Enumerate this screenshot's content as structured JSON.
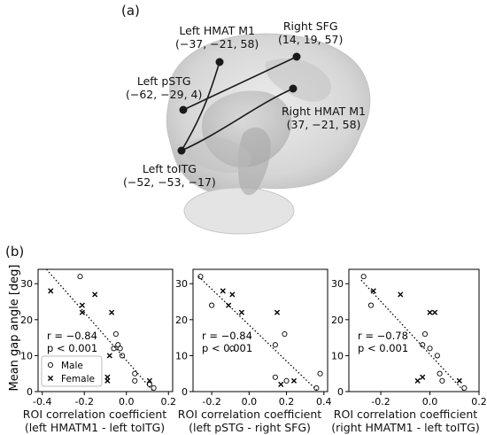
{
  "panel_a_label": "(a)",
  "panel_b_label": "(b)",
  "brain": {
    "regions": [
      {
        "id": "left-hmat-m1",
        "name": "Left HMAT M1",
        "coords": "(−37, −21, 58)"
      },
      {
        "id": "right-sfg",
        "name": "Right SFG",
        "coords": "(14, 19, 57)"
      },
      {
        "id": "left-pstg",
        "name": "Left pSTG",
        "coords": "(−62, −29, 4)"
      },
      {
        "id": "right-hmat-m1",
        "name": "Right HMAT M1",
        "coords": "(37, −21, 58)"
      },
      {
        "id": "left-toitg",
        "name": "Left toITG",
        "coords": "(−52, −53, −17)"
      }
    ],
    "colors": {
      "brain": "#d9d9d9",
      "nodes": "#1a1a1a"
    }
  },
  "shared_ylabel": "Mean gap angle [deg]",
  "legend": {
    "male": "Male",
    "female": "Female"
  },
  "chart_data": [
    {
      "type": "scatter",
      "xlabel_line1": "ROI correlation coefficient",
      "xlabel_line2": "(left HMATM1 - left toITG)",
      "xlim": [
        -0.42,
        0.22
      ],
      "ylim": [
        0,
        34
      ],
      "xticks": [
        "-0.4",
        "-0.2",
        "0.0",
        "0.2"
      ],
      "xtick_values": [
        -0.4,
        -0.2,
        0.0,
        0.2
      ],
      "yticks": [
        "0",
        "10",
        "20",
        "30"
      ],
      "ytick_values": [
        0,
        10,
        20,
        30
      ],
      "stat_r": "r = −0.84",
      "stat_p": "p < 0.001",
      "fit": [
        [
          -0.38,
          34
        ],
        [
          0.13,
          0
        ]
      ],
      "series": [
        {
          "name": "Male",
          "marker": "circle",
          "points": [
            [
              -0.22,
              32
            ],
            [
              -0.05,
              16
            ],
            [
              -0.04,
              13
            ],
            [
              -0.03,
              12
            ],
            [
              -0.06,
              12
            ],
            [
              0.04,
              5
            ],
            [
              0.04,
              3
            ],
            [
              0.11,
              2
            ],
            [
              0.13,
              1
            ],
            [
              -0.02,
              10
            ]
          ]
        },
        {
          "name": "Female",
          "marker": "x",
          "points": [
            [
              -0.36,
              28
            ],
            [
              -0.21,
              24
            ],
            [
              -0.21,
              22
            ],
            [
              -0.15,
              27
            ],
            [
              -0.07,
              22
            ],
            [
              -0.09,
              4
            ],
            [
              -0.09,
              3
            ],
            [
              0.11,
              3
            ],
            [
              -0.08,
              10
            ]
          ]
        }
      ],
      "legend_position": "lower-left",
      "grid": false
    },
    {
      "type": "scatter",
      "xlabel_line1": "ROI correlation coefficient",
      "xlabel_line2": "(left pSTG - right SFG)",
      "xlim": [
        -0.3,
        0.42
      ],
      "ylim": [
        0,
        34
      ],
      "xticks": [
        "-0.2",
        "0.0",
        "0.2",
        "0.4"
      ],
      "xtick_values": [
        -0.2,
        0.0,
        0.2,
        0.4
      ],
      "yticks": [
        "0",
        "10",
        "20",
        "30"
      ],
      "ytick_values": [
        0,
        10,
        20,
        30
      ],
      "stat_r": "r = −0.84",
      "stat_p": "p < 0.001",
      "fit": [
        [
          -0.27,
          32
        ],
        [
          0.37,
          0
        ]
      ],
      "series": [
        {
          "name": "Male",
          "marker": "circle",
          "points": [
            [
              -0.26,
              32
            ],
            [
              -0.2,
              24
            ],
            [
              -0.09,
              12
            ],
            [
              0.14,
              13
            ],
            [
              0.19,
              16
            ],
            [
              0.14,
              4
            ],
            [
              0.2,
              3
            ],
            [
              0.36,
              1
            ],
            [
              0.38,
              5
            ]
          ]
        },
        {
          "name": "Female",
          "marker": "x",
          "points": [
            [
              -0.14,
              28
            ],
            [
              -0.09,
              27
            ],
            [
              -0.11,
              24
            ],
            [
              -0.04,
              22
            ],
            [
              0.15,
              22
            ],
            [
              0.17,
              2
            ],
            [
              0.24,
              3
            ]
          ]
        }
      ],
      "legend_position": "none",
      "grid": false
    },
    {
      "type": "scatter",
      "xlabel_line1": "ROI correlation coefficient",
      "xlabel_line2": "(right HMATM1 - left toITG)",
      "xlim": [
        -0.33,
        0.2
      ],
      "ylim": [
        0,
        34
      ],
      "xticks": [
        "-0.2",
        "0.0",
        "0.2"
      ],
      "xtick_values": [
        -0.2,
        0.0,
        0.2
      ],
      "yticks": [
        "0",
        "10",
        "20",
        "30"
      ],
      "ytick_values": [
        0,
        10,
        20,
        30
      ],
      "stat_r": "r = −0.78",
      "stat_p": "p < 0.001",
      "fit": [
        [
          -0.28,
          31
        ],
        [
          0.14,
          0
        ]
      ],
      "series": [
        {
          "name": "Male",
          "marker": "circle",
          "points": [
            [
              -0.27,
              32
            ],
            [
              -0.24,
              24
            ],
            [
              -0.02,
              16
            ],
            [
              -0.03,
              13
            ],
            [
              0.0,
              12
            ],
            [
              0.04,
              5
            ],
            [
              0.05,
              3
            ],
            [
              0.14,
              1
            ],
            [
              0.03,
              10
            ]
          ]
        },
        {
          "name": "Female",
          "marker": "x",
          "points": [
            [
              -0.23,
              28
            ],
            [
              -0.12,
              27
            ],
            [
              0.0,
              22
            ],
            [
              0.02,
              22
            ],
            [
              0.12,
              3
            ],
            [
              -0.05,
              3
            ],
            [
              -0.03,
              4
            ]
          ]
        }
      ],
      "legend_position": "none",
      "grid": false
    }
  ]
}
